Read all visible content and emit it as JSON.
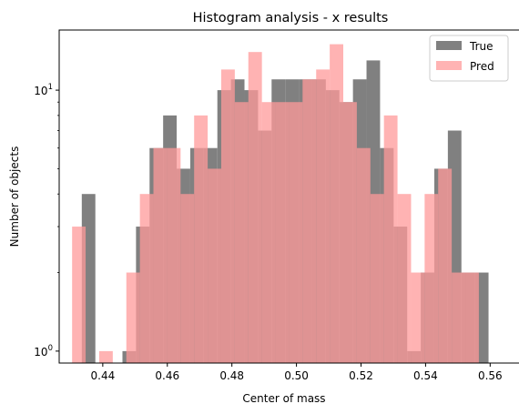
{
  "chart_data": {
    "type": "bar",
    "title": "Histogram analysis - x results",
    "xlabel": "Center of mass",
    "ylabel": "Number of objects",
    "xlim": [
      0.4265,
      0.5695
    ],
    "ylim": [
      0.9,
      17
    ],
    "yscale": "log",
    "x_ticks": [
      {
        "value": 0.44,
        "label": "0.44"
      },
      {
        "value": 0.46,
        "label": "0.46"
      },
      {
        "value": 0.48,
        "label": "0.48"
      },
      {
        "value": 0.5,
        "label": "0.50"
      },
      {
        "value": 0.52,
        "label": "0.52"
      },
      {
        "value": 0.54,
        "label": "0.54"
      },
      {
        "value": 0.56,
        "label": "0.56"
      }
    ],
    "y_ticks": [
      {
        "value": 1,
        "base": "10",
        "exp": "0"
      },
      {
        "value": 10,
        "base": "10",
        "exp": "1"
      }
    ],
    "legend_position": "top-right",
    "series": [
      {
        "name": "True",
        "color": "#808080",
        "bin_width": 0.0042,
        "x_start": 0.4335,
        "values": [
          4,
          0,
          0,
          1,
          3,
          6,
          8,
          5,
          6,
          6,
          10,
          11,
          10,
          7,
          11,
          11,
          11,
          11,
          10,
          9,
          11,
          13,
          6,
          3,
          1,
          2,
          5,
          7,
          2,
          2
        ]
      },
      {
        "name": "Pred",
        "color": "#ff9999",
        "bin_width": 0.0042,
        "x_start": 0.4305,
        "values": [
          3,
          0,
          1,
          0,
          2,
          4,
          6,
          6,
          4,
          8,
          5,
          12,
          9,
          14,
          9,
          9,
          9,
          11,
          12,
          15,
          9,
          6,
          4,
          8,
          4,
          2,
          4,
          5,
          2,
          2
        ]
      }
    ]
  }
}
